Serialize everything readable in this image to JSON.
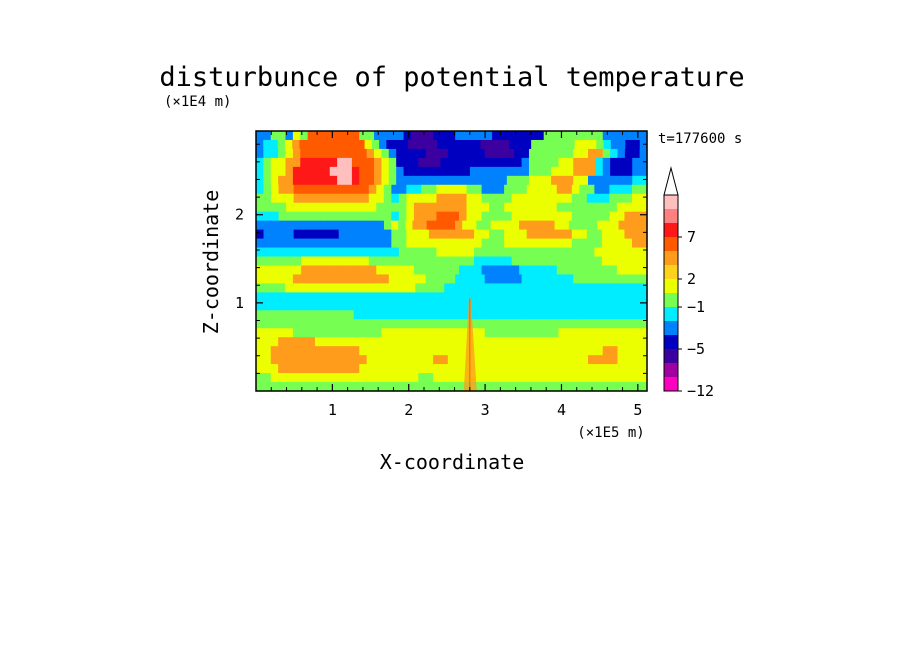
{
  "chart_data": {
    "type": "heatmap",
    "title": "disturbunce of potential temperature",
    "xlabel": "X-coordinate",
    "ylabel": "Z-coordinate",
    "x_unit": "(×1E5 m)",
    "y_unit": "(×1E4 m)",
    "time_label": "t=177600 s",
    "xlim": [
      0,
      5.12
    ],
    "ylim": [
      0,
      2.95
    ],
    "x_ticks": [
      "1",
      "2",
      "3",
      "4",
      "5"
    ],
    "y_ticks": [
      "1",
      "2"
    ],
    "colorbar": {
      "labels": [
        "7",
        "2",
        "−1",
        "−5",
        "−12"
      ],
      "colors_top_to_bottom": [
        "#ffbfbf",
        "#ff8080",
        "#ff1818",
        "#ff5a00",
        "#ff9c1c",
        "#ffd21c",
        "#ecff00",
        "#76ff52",
        "#00ecff",
        "#0082ff",
        "#0000c0",
        "#3c00a0",
        "#a000a0",
        "#ff00c0"
      ],
      "extend_top": true
    },
    "field_rows_top_to_bottom": [
      "bbggbygaaaaaaaggbbbbnmmmnnnbbbbbnnnnnnnggggggggbbbbbb",
      "bccgyoaaaaaaaaaygbnnnmmmmnnnnnnmmmmnnnggggggyyygcbbnnb",
      "bccgyoaaaaaaaaaoygbnnnnmmmnnnnnmmmmnnggggggyyoogcbnnb",
      "cgyyoorrrrrqqaaaoygnnnmmmnnnnnnnnnnnbggggyyooocbnnnbb",
      "cgyyorrrrrqqqraaoygbnnnnnnnnnbbbbbbbbgggyyyooocbnnnbb",
      "cgyoorrrrrrqqraaoygbbbbbbbbbbbbbbbgggyyyoooyybbbbbbcc",
      "cgyooaaaaaaaaaaoygbbccggyyyyggbbbgggyyyyooyggbbcccgg",
      "ggyyyooooooooooyygcgyyyyooooyyggggyyyyyyyyggcccgggyy",
      "ggggyyyyyyyyyyyyggggyoooooooyyyggyyyyyyyggggggggyyyy",
      "cccgggggggggggggggcgyoooaaaoyyggggyyyyyyyygggggyyooo",
      "bbbbbbbbbbbbbbbbbbgygyooaaaaoyyggyyyyoooooyyggggyyyoooo",
      "nbbbbnnnnnnbbbbbbbggyyyooooooyyggyyyooooooyyggyyyooo",
      "bbbbbbbbbbbbbbbbbbggyyyyyyyyyygggyyyyyyyyyggggyyyyoo",
      "cccccccccccccccccccgggggyyyyyggggggggggggggggyyyyyyy",
      "ggggggyyyyyyyyyggggggggggggggcccccggggggggggggyyyyyy",
      "yyyyyyooooooooooyyyyyggggggcccbbbbbcccccggggggggyyyy",
      "yyyyyoooooooooooooyyyyyggggccccbbbbbcccccccgggggggggg",
      "ggggyyyyyyyyyyyyyyyyyyggggcccccccccccccccccccccccccccc",
      "ccccccccccccccccccccccccccccccccccccccccccccccccccccc",
      "ccccccccccccccccccccccccccccccccccccccccccccccccccccc",
      "gggggggggggggccccccccccccccccccccccccccccccccccccccc",
      "ggggggggggggggggggggggggggggggggggggggggggggggggggggg",
      "yyyyyggggggggggggyyyyyyyyyyyyyyggggggggggyyyyyyyyyyyy",
      "yyyoooooyyyyyyyyyyyyyyyyyyyyyyyyyyyyyyyyyyyyyyyyyyyyy",
      "yyooooooooooooyyyyyyyyyyyyyyyyyyyyyyyyyyyyyyyyyooyyyy",
      "yyoooooooooooooyyyyyyyyyooyyyyyyyyyyyyyyyyyyyooooyyyy",
      "yyyoooooooooooyyyyyyyyyyyyyyyyyyyyyyyyyyyyyyyyyyyyyyy",
      "ggyyyyyyyyyyyyyyyyyyyyggyyyyyyyyyyyyyyyyyyyyyyyyyyyyy",
      "gggggggggggggggggggggggggggggggggggggggggggggggggggg"
    ]
  }
}
